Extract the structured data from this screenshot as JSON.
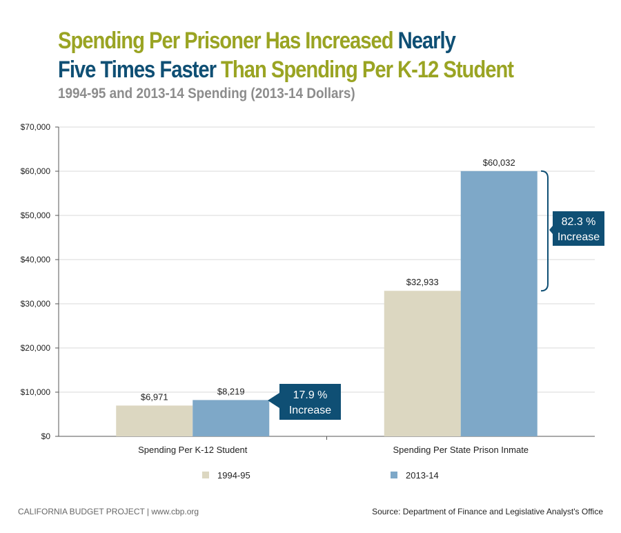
{
  "title": {
    "line1_green": "Spending Per Prisoner Has Increased",
    "line1_blue": "Nearly",
    "line2_blue": "Five Times Faster",
    "line2_green": "Than Spending Per K-12 Student"
  },
  "subtitle": "1994-95 and 2013-14 Spending (2013-14 Dollars)",
  "footer": {
    "left": "CALIFORNIA BUDGET PROJECT  |  www.cbp.org",
    "right": "Source: Department of Finance and Legislative Analyst's Office"
  },
  "colors": {
    "series_1994": "#dcd7c1",
    "series_2013": "#7ea8c8",
    "callout": "#0f4f74",
    "title_green": "#9aa423",
    "title_blue": "#0f4f74",
    "grid": "#d9d9d9"
  },
  "chart_data": {
    "type": "bar",
    "categories": [
      "Spending Per K-12 Student",
      "Spending Per State Prison Inmate"
    ],
    "series": [
      {
        "name": "1994-95",
        "values": [
          6971,
          32933
        ],
        "labels": [
          "$6,971",
          "$32,933"
        ]
      },
      {
        "name": "2013-14",
        "values": [
          8219,
          60032
        ],
        "labels": [
          "$8,219",
          "$60,032"
        ]
      }
    ],
    "ylim": [
      0,
      70000
    ],
    "yticks": [
      0,
      10000,
      20000,
      30000,
      40000,
      50000,
      60000,
      70000
    ],
    "ytick_labels": [
      "$0",
      "$10,000",
      "$20,000",
      "$30,000",
      "$40,000",
      "$50,000",
      "$60,000",
      "$70,000"
    ],
    "grid": true,
    "legend_position": "bottom",
    "annotations": [
      {
        "category_index": 0,
        "line1": "17.9 %",
        "line2": "Increase"
      },
      {
        "category_index": 1,
        "line1": "82.3 %",
        "line2": "Increase"
      }
    ]
  }
}
